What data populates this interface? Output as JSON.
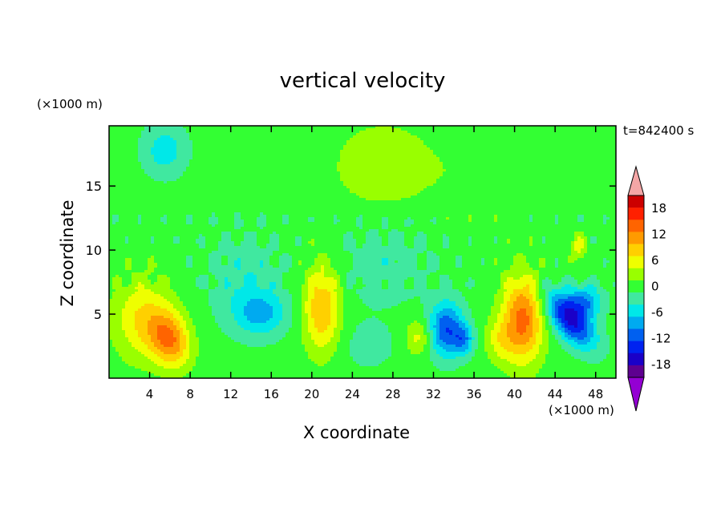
{
  "chart_data": {
    "type": "heatmap",
    "title": "vertical velocity",
    "xlabel": "X coordinate",
    "ylabel": "Z coordinate",
    "x_unit_label": "(×1000 m)",
    "y_unit_label": "(×1000 m)",
    "time_label": "t=842400 s",
    "xlim": [
      0,
      50
    ],
    "ylim": [
      0,
      19.7
    ],
    "x_ticks": [
      4,
      8,
      12,
      16,
      20,
      24,
      28,
      32,
      36,
      40,
      44,
      48
    ],
    "y_ticks": [
      5,
      10,
      15
    ],
    "colorbar": {
      "tick_labels": [
        "18",
        "12",
        "6",
        "0",
        "-6",
        "-12",
        "-18"
      ],
      "tick_values": [
        18,
        12,
        6,
        0,
        -6,
        -12,
        -18
      ],
      "levels": [
        -21,
        -18,
        -15,
        -12,
        -9,
        -6,
        -3,
        0,
        3,
        6,
        9,
        12,
        15,
        18,
        21
      ],
      "colors": [
        "#9400d3",
        "#5e0090",
        "#1a00c8",
        "#0022f0",
        "#0060f0",
        "#00aaf0",
        "#00e8e8",
        "#40e8a0",
        "#33ff33",
        "#99ff00",
        "#eeff00",
        "#ffd000",
        "#ff9a00",
        "#ff6400",
        "#ff2000",
        "#cc0000",
        "#f4a6a6"
      ],
      "extend": "both"
    },
    "features": [
      {
        "x": 6.0,
        "z": 3.0,
        "sx": 1.3,
        "sz": 1.6,
        "w": 13,
        "rot": -0.55
      },
      {
        "x": 3.3,
        "z": 4.6,
        "sx": 2.0,
        "sz": 2.2,
        "w": 8
      },
      {
        "x": 21.0,
        "z": 5.5,
        "sx": 1.3,
        "sz": 2.4,
        "w": 11
      },
      {
        "x": 40.8,
        "z": 4.6,
        "sx": 1.4,
        "sz": 2.4,
        "w": 15
      },
      {
        "x": 38.5,
        "z": 3.0,
        "sx": 1.0,
        "sz": 1.2,
        "w": 5
      },
      {
        "x": 30.5,
        "z": 3.2,
        "sx": 0.9,
        "sz": 1.0,
        "w": 6
      },
      {
        "x": 33.3,
        "z": 3.8,
        "sx": 1.2,
        "sz": 1.5,
        "w": -13
      },
      {
        "x": 35.0,
        "z": 3.0,
        "sx": 0.7,
        "sz": 0.8,
        "w": -8
      },
      {
        "x": 45.5,
        "z": 4.6,
        "sx": 2.0,
        "sz": 1.0,
        "w": -17,
        "rot": 0.7
      },
      {
        "x": 47.0,
        "z": 6.0,
        "sx": 1.2,
        "sz": 0.9,
        "w": -9
      },
      {
        "x": 15.0,
        "z": 5.0,
        "sx": 1.8,
        "sz": 1.2,
        "w": -7
      },
      {
        "x": 13.5,
        "z": 7.5,
        "sx": 2.5,
        "sz": 2.5,
        "w": -4
      },
      {
        "x": 27.0,
        "z": 9.0,
        "sx": 3.5,
        "sz": 2.5,
        "w": -3
      },
      {
        "x": 5.5,
        "z": 17.8,
        "sx": 1.5,
        "sz": 1.4,
        "w": -6
      },
      {
        "x": 27.0,
        "z": 16.5,
        "sx": 3.5,
        "sz": 2.5,
        "w": 4
      },
      {
        "x": 46.3,
        "z": 10.2,
        "sx": 0.5,
        "sz": 0.8,
        "w": 6
      },
      {
        "x": 36.0,
        "z": 16.0,
        "sx": 3.0,
        "sz": 2.5,
        "w": 1.5
      },
      {
        "x": 25.5,
        "z": 2.5,
        "sx": 2.0,
        "sz": 1.3,
        "w": -2.5
      }
    ]
  }
}
